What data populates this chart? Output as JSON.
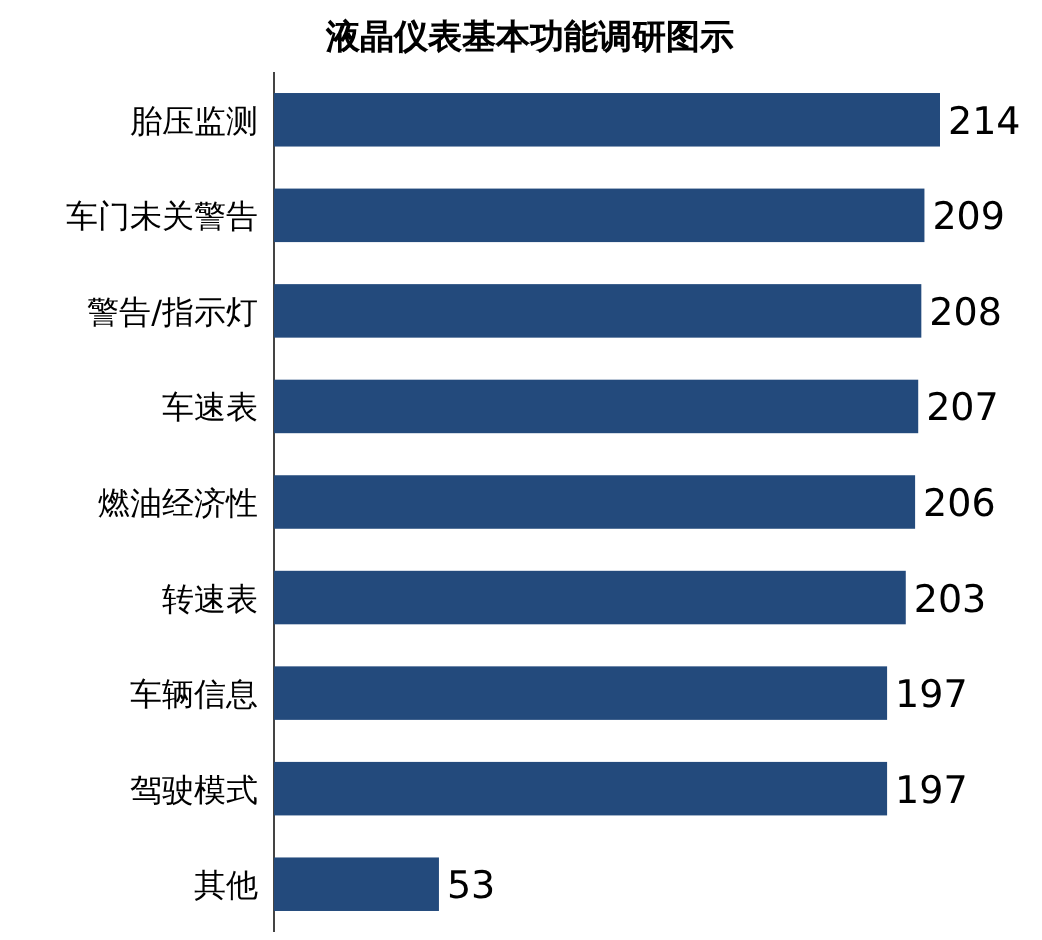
{
  "chart_data": {
    "type": "bar",
    "orientation": "horizontal",
    "title": "液晶仪表基本功能调研图示",
    "categories": [
      "胎压监测",
      "车门未关警告",
      "警告/指示灯",
      "车速表",
      "燃油经济性",
      "转速表",
      "车辆信息",
      "驾驶模式",
      "其他"
    ],
    "values": [
      214,
      209,
      208,
      207,
      206,
      203,
      197,
      197,
      53
    ],
    "color": "#234a7c",
    "data_labels": true
  }
}
